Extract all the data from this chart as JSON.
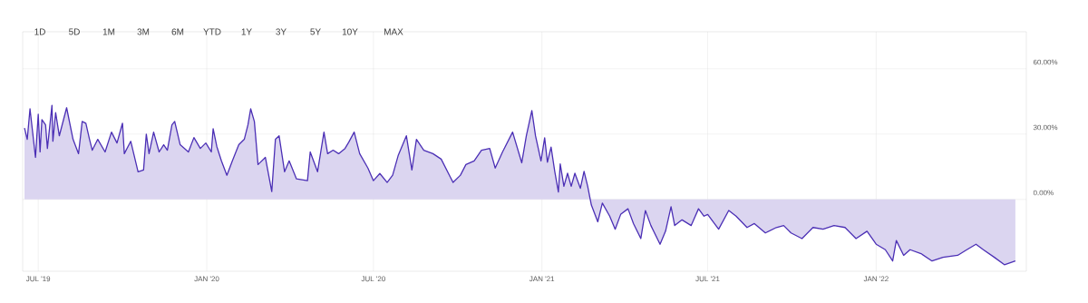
{
  "chart_data": {
    "type": "area",
    "color": "#4b2fb5",
    "grid": true,
    "marker": "none",
    "line_style": "solid",
    "annotations": [
      "1D",
      "5D",
      "1M",
      "3M",
      "6M",
      "YTD",
      "1Y",
      "3Y",
      "5Y",
      "10Y",
      "MAX"
    ],
    "xlim": [
      "2019-06-14",
      "2022-06-14"
    ],
    "ylim": [
      -33,
      77
    ],
    "xticks": [
      {
        "value": "2019-07-01",
        "label": "JUL '19"
      },
      {
        "value": "2020-01-01",
        "label": "JAN '20"
      },
      {
        "value": "2020-07-01",
        "label": "JUL '20"
      },
      {
        "value": "2021-01-01",
        "label": "JAN '21"
      },
      {
        "value": "2021-07-01",
        "label": "JUL '21"
      },
      {
        "value": "2022-01-01",
        "label": "JAN '22"
      }
    ],
    "yticks": [
      {
        "value": 0,
        "label": "0.00%"
      },
      {
        "value": 30,
        "label": "30.00%"
      },
      {
        "value": 60,
        "label": "60.00%"
      }
    ],
    "x": [
      "2019-06-16",
      "2019-06-19",
      "2019-06-22",
      "2019-06-28",
      "2019-07-01",
      "2019-07-03",
      "2019-07-05",
      "2019-07-09",
      "2019-07-11",
      "2019-07-16",
      "2019-07-17",
      "2019-07-20",
      "2019-07-24",
      "2019-08-01",
      "2019-08-08",
      "2019-08-14",
      "2019-08-18",
      "2019-08-22",
      "2019-08-26",
      "2019-08-29",
      "2019-09-04",
      "2019-09-12",
      "2019-09-19",
      "2019-09-25",
      "2019-10-01",
      "2019-10-03",
      "2019-10-10",
      "2019-10-18",
      "2019-10-24",
      "2019-10-27",
      "2019-10-30",
      "2019-11-04",
      "2019-11-10",
      "2019-11-15",
      "2019-11-19",
      "2019-11-24",
      "2019-11-27",
      "2019-12-03",
      "2019-12-12",
      "2019-12-18",
      "2019-12-25",
      "2019-12-31",
      "2020-01-06",
      "2020-01-08",
      "2020-01-12",
      "2020-01-17",
      "2020-01-23",
      "2020-01-29",
      "2020-02-05",
      "2020-02-11",
      "2020-02-15",
      "2020-02-18",
      "2020-02-22",
      "2020-02-26",
      "2020-03-05",
      "2020-03-12",
      "2020-03-16",
      "2020-03-20",
      "2020-03-26",
      "2020-03-31",
      "2020-04-08",
      "2020-04-20",
      "2020-04-23",
      "2020-05-01",
      "2020-05-08",
      "2020-05-12",
      "2020-05-18",
      "2020-05-24",
      "2020-05-31",
      "2020-06-04",
      "2020-06-10",
      "2020-06-16",
      "2020-06-25",
      "2020-07-01",
      "2020-07-08",
      "2020-07-16",
      "2020-07-22",
      "2020-07-28",
      "2020-08-06",
      "2020-08-12",
      "2020-08-17",
      "2020-08-25",
      "2020-09-04",
      "2020-09-13",
      "2020-09-23",
      "2020-09-26",
      "2020-10-04",
      "2020-10-10",
      "2020-10-19",
      "2020-10-27",
      "2020-11-05",
      "2020-11-11",
      "2020-11-19",
      "2020-11-30",
      "2020-12-10",
      "2020-12-15",
      "2020-12-21",
      "2020-12-25",
      "2020-12-31",
      "2021-01-04",
      "2021-01-07",
      "2021-01-11",
      "2021-01-15",
      "2021-01-19",
      "2021-01-21",
      "2021-01-25",
      "2021-01-29",
      "2021-02-02",
      "2021-02-06",
      "2021-02-12",
      "2021-02-16",
      "2021-02-20",
      "2021-02-24",
      "2021-03-03",
      "2021-03-08",
      "2021-03-16",
      "2021-03-22",
      "2021-03-28",
      "2021-04-05",
      "2021-04-11",
      "2021-04-19",
      "2021-04-24",
      "2021-04-30",
      "2021-05-10",
      "2021-05-16",
      "2021-05-22",
      "2021-05-26",
      "2021-06-03",
      "2021-06-13",
      "2021-06-21",
      "2021-06-27",
      "2021-07-01",
      "2021-07-13",
      "2021-07-24",
      "2021-08-01",
      "2021-08-13",
      "2021-08-21",
      "2021-09-02",
      "2021-09-14",
      "2021-09-22",
      "2021-09-30",
      "2021-10-12",
      "2021-10-24",
      "2021-11-04",
      "2021-11-16",
      "2021-11-28",
      "2021-12-10",
      "2021-12-22",
      "2022-01-01",
      "2022-01-11",
      "2022-01-19",
      "2022-01-23",
      "2022-01-31",
      "2022-02-07",
      "2022-02-19",
      "2022-03-03",
      "2022-03-15",
      "2022-03-31",
      "2022-04-10",
      "2022-04-20",
      "2022-04-28",
      "2022-05-10",
      "2022-05-21",
      "2022-06-02"
    ],
    "values": [
      32.8,
      27.6,
      41.6,
      19.3,
      39.1,
      21.8,
      36.6,
      34.2,
      23.4,
      43.2,
      26.7,
      39.9,
      29.2,
      42.1,
      27.6,
      21.0,
      35.8,
      35.0,
      27.6,
      22.6,
      27.6,
      21.8,
      30.9,
      25.9,
      35.0,
      21.0,
      26.7,
      12.7,
      13.5,
      30.0,
      21.0,
      30.9,
      21.8,
      25.1,
      22.6,
      34.2,
      35.8,
      25.1,
      21.8,
      28.4,
      23.4,
      25.9,
      21.8,
      32.5,
      24.3,
      17.7,
      11.1,
      17.7,
      25.1,
      27.6,
      34.2,
      41.6,
      35.8,
      16.0,
      19.3,
      3.6,
      27.6,
      29.2,
      12.7,
      17.7,
      9.4,
      8.6,
      21.8,
      12.7,
      30.9,
      21.0,
      22.6,
      21.0,
      23.4,
      26.2,
      30.9,
      21.0,
      14.4,
      8.6,
      11.9,
      7.8,
      11.1,
      20.1,
      29.2,
      13.5,
      27.6,
      22.6,
      21.0,
      18.5,
      10.2,
      7.8,
      11.1,
      16.0,
      17.7,
      22.6,
      23.4,
      14.4,
      21.8,
      30.9,
      16.8,
      29.2,
      40.8,
      29.2,
      17.7,
      28.3,
      17.1,
      24.0,
      12.9,
      3.4,
      16.3,
      6.0,
      12.0,
      6.0,
      12.0,
      5.1,
      12.9,
      6.0,
      -2.6,
      -10.3,
      -1.7,
      -7.7,
      -13.7,
      -6.9,
      -4.3,
      -11.1,
      -18.0,
      -5.1,
      -12.0,
      -20.6,
      -14.6,
      -3.4,
      -12.0,
      -9.4,
      -12.0,
      -4.3,
      -7.7,
      -6.9,
      -13.7,
      -5.1,
      -7.7,
      -12.9,
      -11.1,
      -15.4,
      -12.9,
      -12.0,
      -15.4,
      -18.0,
      -12.9,
      -13.7,
      -12.0,
      -12.9,
      -18.0,
      -14.6,
      -20.6,
      -23.1,
      -28.3,
      -18.9,
      -25.7,
      -23.1,
      -24.9,
      -28.3,
      -26.6,
      -25.7,
      -23.1,
      -20.6,
      -23.1,
      -26.6,
      -30.0,
      -28.3
    ]
  }
}
